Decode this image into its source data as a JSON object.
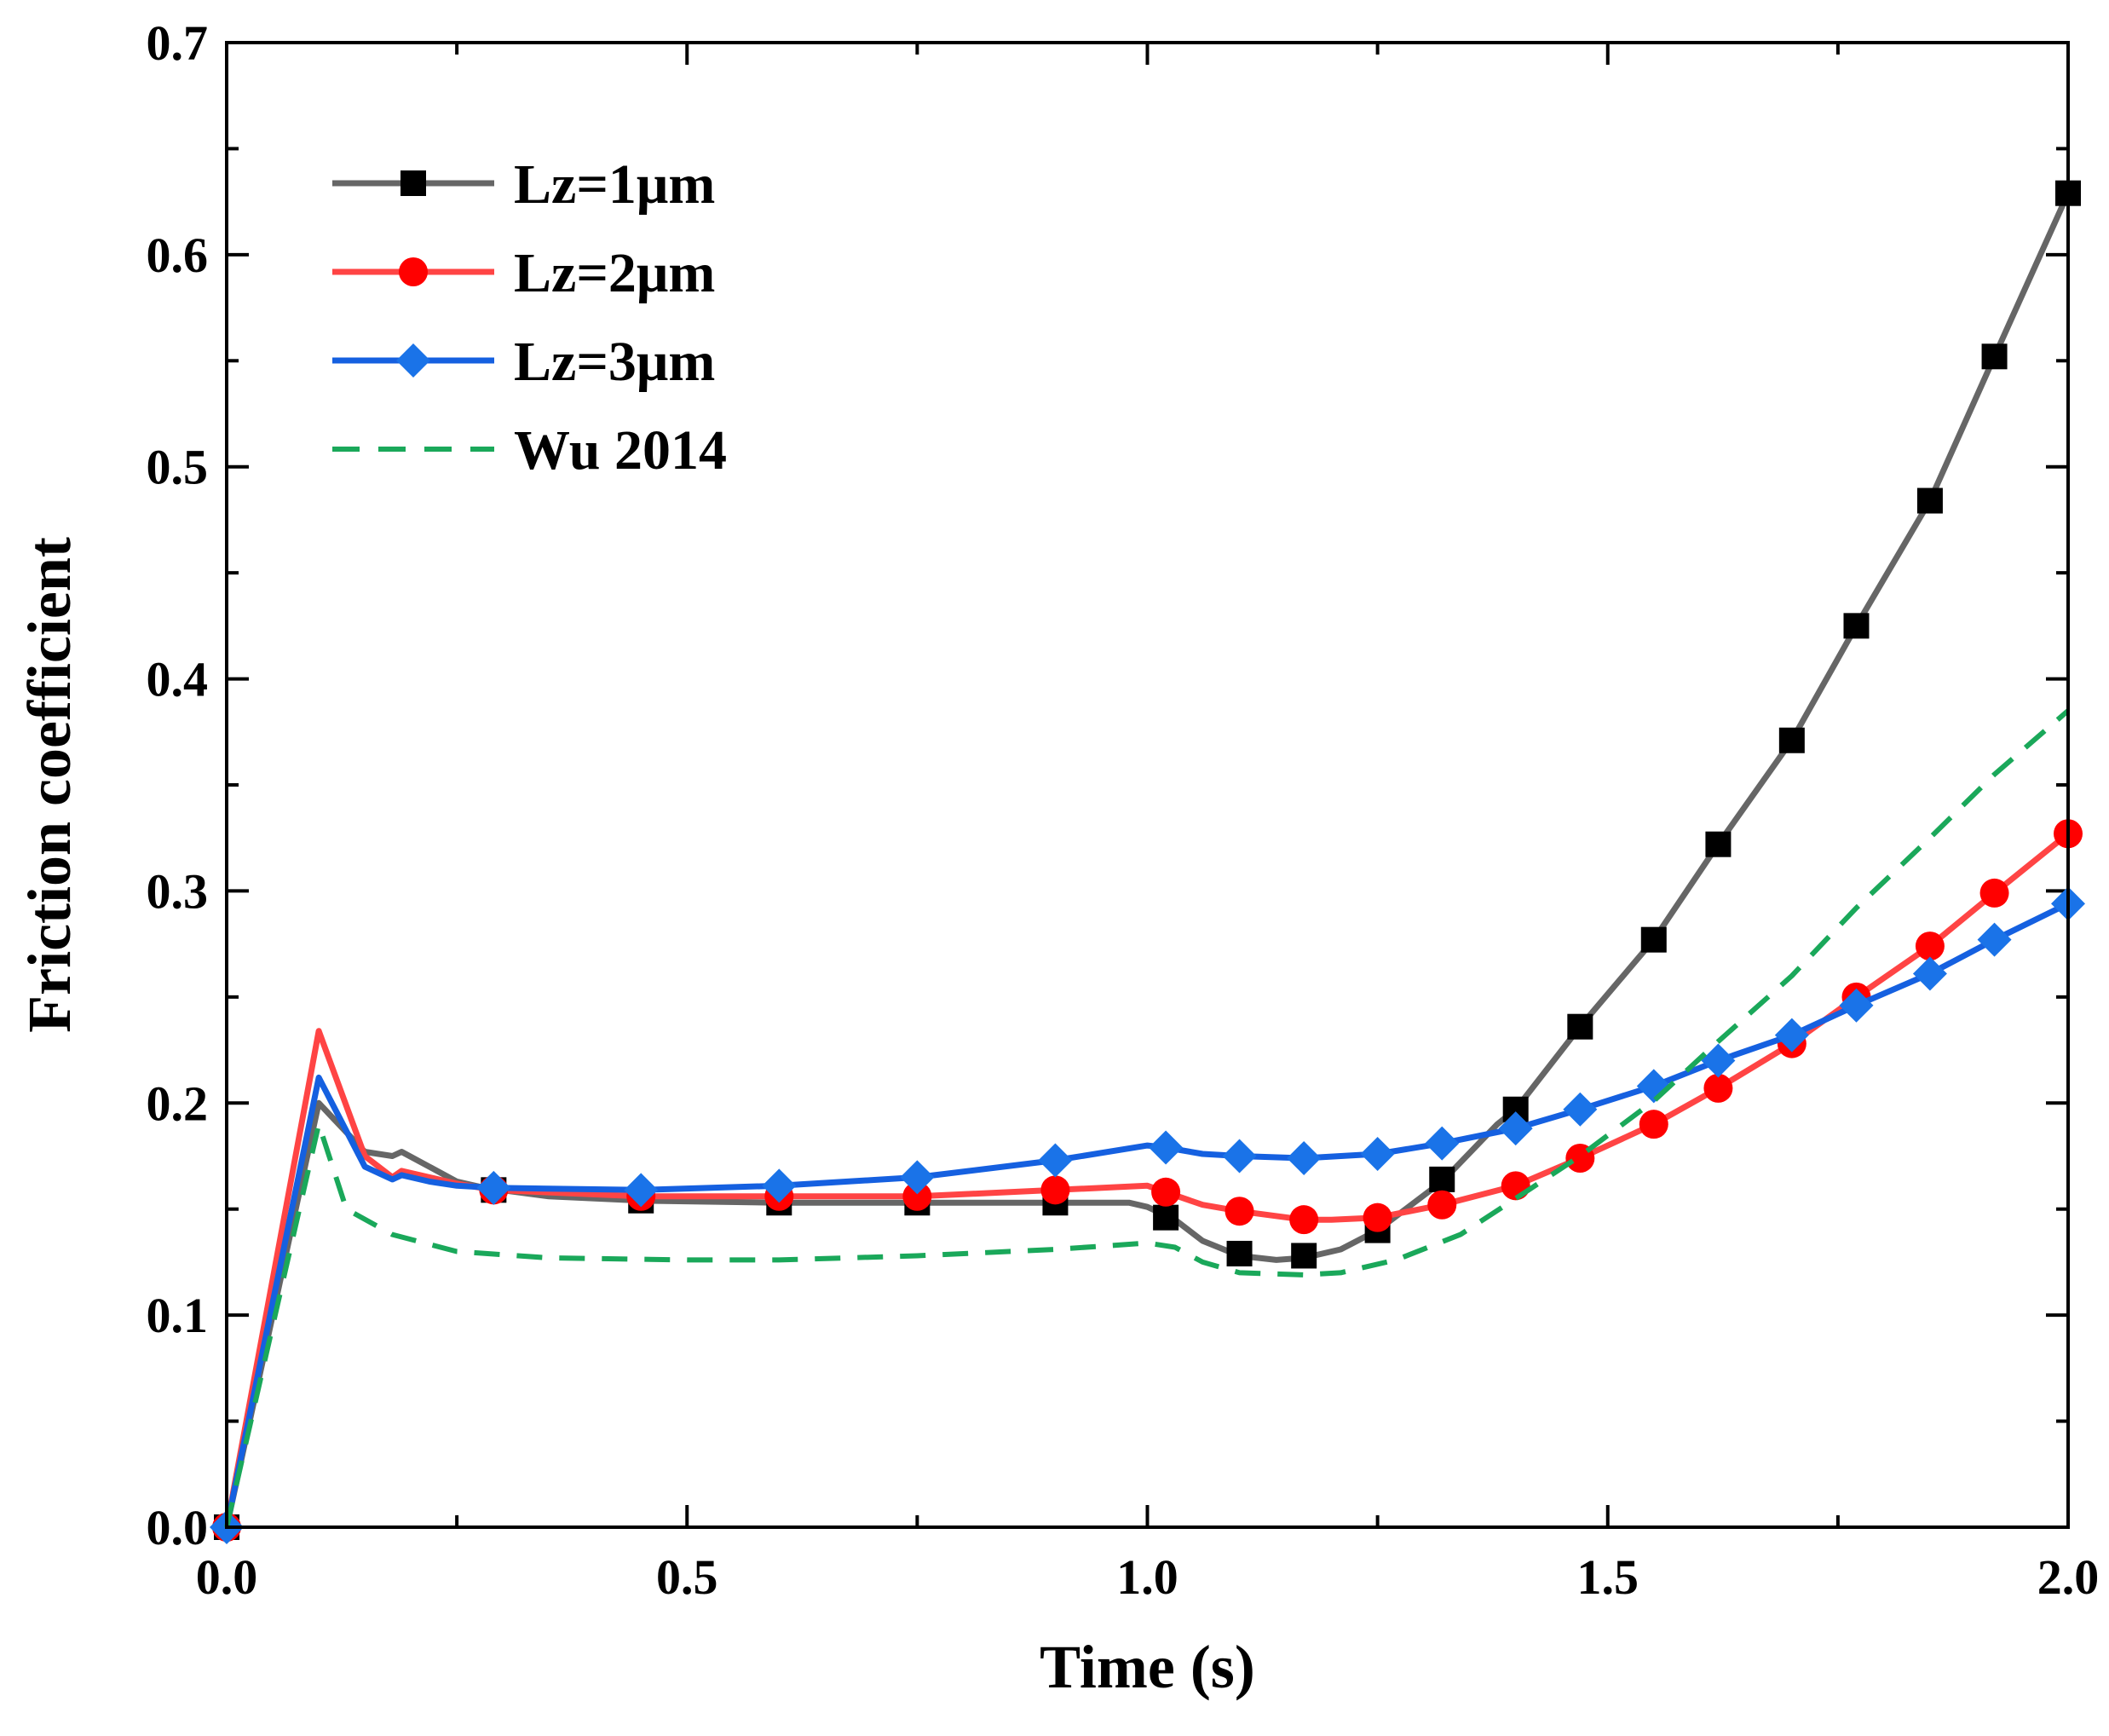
{
  "chart_data": {
    "type": "line",
    "xlabel": "Time (s)",
    "ylabel": "Friction coefficient",
    "xlim": [
      0,
      2.0
    ],
    "ylim": [
      0,
      0.7
    ],
    "xticks": [
      "0.0",
      "0.5",
      "1.0",
      "1.5",
      "2.0"
    ],
    "yticks": [
      "0.0",
      "0.1",
      "0.2",
      "0.3",
      "0.4",
      "0.5",
      "0.6",
      "0.7"
    ],
    "grid": false,
    "legend_position": "top-left",
    "series": [
      {
        "name": "Lz=1μm",
        "color": "#666666",
        "marker": "square",
        "marker_color": "#000000",
        "dashed": false,
        "line": [
          [
            0,
            0
          ],
          [
            0.1,
            0.2
          ],
          [
            0.15,
            0.177
          ],
          [
            0.18,
            0.175
          ],
          [
            0.19,
            0.177
          ],
          [
            0.22,
            0.17
          ],
          [
            0.25,
            0.163
          ],
          [
            0.28,
            0.16
          ],
          [
            0.35,
            0.156
          ],
          [
            0.45,
            0.154
          ],
          [
            0.6,
            0.153
          ],
          [
            0.75,
            0.153
          ],
          [
            0.9,
            0.153
          ],
          [
            0.98,
            0.153
          ],
          [
            1.0,
            0.151
          ],
          [
            1.03,
            0.145
          ],
          [
            1.06,
            0.135
          ],
          [
            1.1,
            0.128
          ],
          [
            1.14,
            0.126
          ],
          [
            1.17,
            0.127
          ],
          [
            1.21,
            0.131
          ],
          [
            1.25,
            0.14
          ],
          [
            1.32,
            0.163
          ],
          [
            1.38,
            0.19
          ],
          [
            1.4,
            0.197
          ],
          [
            1.47,
            0.236
          ],
          [
            1.55,
            0.277
          ],
          [
            1.62,
            0.322
          ],
          [
            1.7,
            0.371
          ],
          [
            1.77,
            0.425
          ],
          [
            1.85,
            0.484
          ],
          [
            1.92,
            0.552
          ],
          [
            2.0,
            0.629
          ]
        ],
        "markers": [
          [
            0,
            0
          ],
          [
            0.29,
            0.159
          ],
          [
            0.45,
            0.154
          ],
          [
            0.6,
            0.153
          ],
          [
            0.75,
            0.153
          ],
          [
            0.9,
            0.153
          ],
          [
            1.02,
            0.146
          ],
          [
            1.1,
            0.129
          ],
          [
            1.17,
            0.128
          ],
          [
            1.25,
            0.14
          ],
          [
            1.32,
            0.164
          ],
          [
            1.4,
            0.197
          ],
          [
            1.47,
            0.236
          ],
          [
            1.55,
            0.277
          ],
          [
            1.62,
            0.322
          ],
          [
            1.7,
            0.371
          ],
          [
            1.77,
            0.425
          ],
          [
            1.85,
            0.484
          ],
          [
            1.92,
            0.552
          ],
          [
            2.0,
            0.629
          ]
        ]
      },
      {
        "name": "Lz=2μm",
        "color": "#ff4444",
        "marker": "circle",
        "marker_color": "#ff0000",
        "dashed": false,
        "line": [
          [
            0,
            0
          ],
          [
            0.1,
            0.234
          ],
          [
            0.15,
            0.175
          ],
          [
            0.18,
            0.165
          ],
          [
            0.19,
            0.168
          ],
          [
            0.25,
            0.162
          ],
          [
            0.29,
            0.159
          ],
          [
            0.45,
            0.156
          ],
          [
            0.6,
            0.156
          ],
          [
            0.75,
            0.156
          ],
          [
            0.9,
            0.159
          ],
          [
            1.0,
            0.161
          ],
          [
            1.02,
            0.158
          ],
          [
            1.06,
            0.152
          ],
          [
            1.1,
            0.149
          ],
          [
            1.17,
            0.145
          ],
          [
            1.2,
            0.145
          ],
          [
            1.25,
            0.146
          ],
          [
            1.32,
            0.152
          ],
          [
            1.4,
            0.161
          ],
          [
            1.47,
            0.174
          ],
          [
            1.55,
            0.19
          ],
          [
            1.62,
            0.207
          ],
          [
            1.7,
            0.228
          ],
          [
            1.77,
            0.25
          ],
          [
            1.85,
            0.274
          ],
          [
            1.92,
            0.299
          ],
          [
            2.0,
            0.327
          ]
        ],
        "markers": [
          [
            0,
            0
          ],
          [
            0.29,
            0.159
          ],
          [
            0.45,
            0.156
          ],
          [
            0.6,
            0.156
          ],
          [
            0.75,
            0.156
          ],
          [
            0.9,
            0.159
          ],
          [
            1.02,
            0.158
          ],
          [
            1.1,
            0.149
          ],
          [
            1.17,
            0.145
          ],
          [
            1.25,
            0.146
          ],
          [
            1.32,
            0.152
          ],
          [
            1.4,
            0.161
          ],
          [
            1.47,
            0.174
          ],
          [
            1.55,
            0.19
          ],
          [
            1.62,
            0.207
          ],
          [
            1.7,
            0.228
          ],
          [
            1.77,
            0.25
          ],
          [
            1.85,
            0.274
          ],
          [
            1.92,
            0.299
          ],
          [
            2.0,
            0.327
          ]
        ]
      },
      {
        "name": "Lz=3μm",
        "color": "#1560e0",
        "marker": "diamond",
        "marker_color": "#1a73e8",
        "dashed": false,
        "line": [
          [
            0,
            0
          ],
          [
            0.1,
            0.212
          ],
          [
            0.15,
            0.17
          ],
          [
            0.18,
            0.164
          ],
          [
            0.19,
            0.166
          ],
          [
            0.22,
            0.163
          ],
          [
            0.25,
            0.161
          ],
          [
            0.29,
            0.16
          ],
          [
            0.45,
            0.159
          ],
          [
            0.6,
            0.161
          ],
          [
            0.75,
            0.165
          ],
          [
            0.9,
            0.173
          ],
          [
            1.0,
            0.18
          ],
          [
            1.02,
            0.179
          ],
          [
            1.06,
            0.176
          ],
          [
            1.1,
            0.175
          ],
          [
            1.17,
            0.174
          ],
          [
            1.25,
            0.176
          ],
          [
            1.32,
            0.181
          ],
          [
            1.4,
            0.188
          ],
          [
            1.47,
            0.197
          ],
          [
            1.55,
            0.208
          ],
          [
            1.62,
            0.22
          ],
          [
            1.7,
            0.232
          ],
          [
            1.77,
            0.246
          ],
          [
            1.85,
            0.261
          ],
          [
            1.92,
            0.277
          ],
          [
            2.0,
            0.294
          ]
        ],
        "markers": [
          [
            0,
            0
          ],
          [
            0.29,
            0.16
          ],
          [
            0.45,
            0.159
          ],
          [
            0.6,
            0.161
          ],
          [
            0.75,
            0.165
          ],
          [
            0.9,
            0.173
          ],
          [
            1.02,
            0.179
          ],
          [
            1.1,
            0.175
          ],
          [
            1.17,
            0.174
          ],
          [
            1.25,
            0.176
          ],
          [
            1.32,
            0.181
          ],
          [
            1.4,
            0.188
          ],
          [
            1.47,
            0.197
          ],
          [
            1.55,
            0.208
          ],
          [
            1.62,
            0.22
          ],
          [
            1.7,
            0.232
          ],
          [
            1.77,
            0.246
          ],
          [
            1.85,
            0.261
          ],
          [
            1.92,
            0.277
          ],
          [
            2.0,
            0.294
          ]
        ]
      },
      {
        "name": "Wu 2014",
        "color": "#1aa85a",
        "marker": "none",
        "dashed": true,
        "line": [
          [
            0,
            0
          ],
          [
            0.1,
            0.19
          ],
          [
            0.13,
            0.15
          ],
          [
            0.18,
            0.138
          ],
          [
            0.25,
            0.13
          ],
          [
            0.35,
            0.127
          ],
          [
            0.5,
            0.126
          ],
          [
            0.6,
            0.126
          ],
          [
            0.75,
            0.128
          ],
          [
            0.9,
            0.131
          ],
          [
            1.0,
            0.134
          ],
          [
            1.03,
            0.132
          ],
          [
            1.06,
            0.125
          ],
          [
            1.1,
            0.12
          ],
          [
            1.17,
            0.119
          ],
          [
            1.21,
            0.12
          ],
          [
            1.27,
            0.126
          ],
          [
            1.34,
            0.138
          ],
          [
            1.4,
            0.155
          ],
          [
            1.47,
            0.175
          ],
          [
            1.55,
            0.201
          ],
          [
            1.62,
            0.229
          ],
          [
            1.7,
            0.26
          ],
          [
            1.77,
            0.292
          ],
          [
            1.85,
            0.325
          ],
          [
            1.92,
            0.355
          ],
          [
            2.0,
            0.385
          ]
        ],
        "markers": []
      }
    ]
  }
}
